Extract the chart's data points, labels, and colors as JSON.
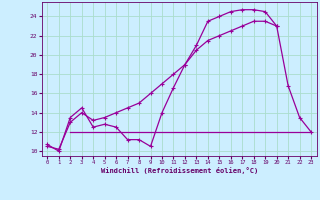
{
  "xlabel": "Windchill (Refroidissement éolien,°C)",
  "background_color": "#cceeff",
  "grid_color": "#aaddcc",
  "line_color": "#990099",
  "xlim": [
    -0.5,
    23.5
  ],
  "ylim": [
    9.5,
    25.5
  ],
  "yticks": [
    10,
    12,
    14,
    16,
    18,
    20,
    22,
    24
  ],
  "xticks": [
    0,
    1,
    2,
    3,
    4,
    5,
    6,
    7,
    8,
    9,
    10,
    11,
    12,
    13,
    14,
    15,
    16,
    17,
    18,
    19,
    20,
    21,
    22,
    23
  ],
  "curve1_x": [
    0,
    1,
    2,
    3,
    4,
    5,
    6,
    7,
    8,
    9,
    10,
    11,
    12,
    13,
    14,
    15,
    16,
    17,
    18,
    19,
    20,
    21,
    22,
    23
  ],
  "curve1_y": [
    10.7,
    10.0,
    13.5,
    14.5,
    12.5,
    12.8,
    12.5,
    11.2,
    11.2,
    10.5,
    14.0,
    16.6,
    19.0,
    21.0,
    23.5,
    24.0,
    24.5,
    24.7,
    24.7,
    24.5,
    23.0,
    16.8,
    13.5,
    12.0
  ],
  "curve2_x": [
    0,
    1,
    2,
    3,
    4,
    5,
    6,
    7,
    8,
    9,
    10,
    11,
    12,
    13,
    14,
    15,
    16,
    17,
    18,
    19,
    20
  ],
  "curve2_y": [
    10.5,
    10.2,
    13.0,
    14.0,
    13.2,
    13.5,
    14.0,
    14.5,
    15.0,
    16.0,
    17.0,
    18.0,
    19.0,
    20.5,
    21.5,
    22.0,
    22.5,
    23.0,
    23.5,
    23.5,
    23.0
  ],
  "curve3_x": [
    2,
    3,
    4,
    5,
    6,
    7,
    8,
    9,
    10,
    11,
    12,
    13,
    14,
    15,
    16,
    17,
    18,
    19,
    20,
    21,
    22,
    23
  ],
  "curve3_y": [
    12.0,
    12.0,
    12.0,
    12.0,
    12.0,
    12.0,
    12.0,
    12.0,
    12.0,
    12.0,
    12.0,
    12.0,
    12.0,
    12.0,
    12.0,
    12.0,
    12.0,
    12.0,
    12.0,
    12.0,
    12.0,
    12.0
  ]
}
